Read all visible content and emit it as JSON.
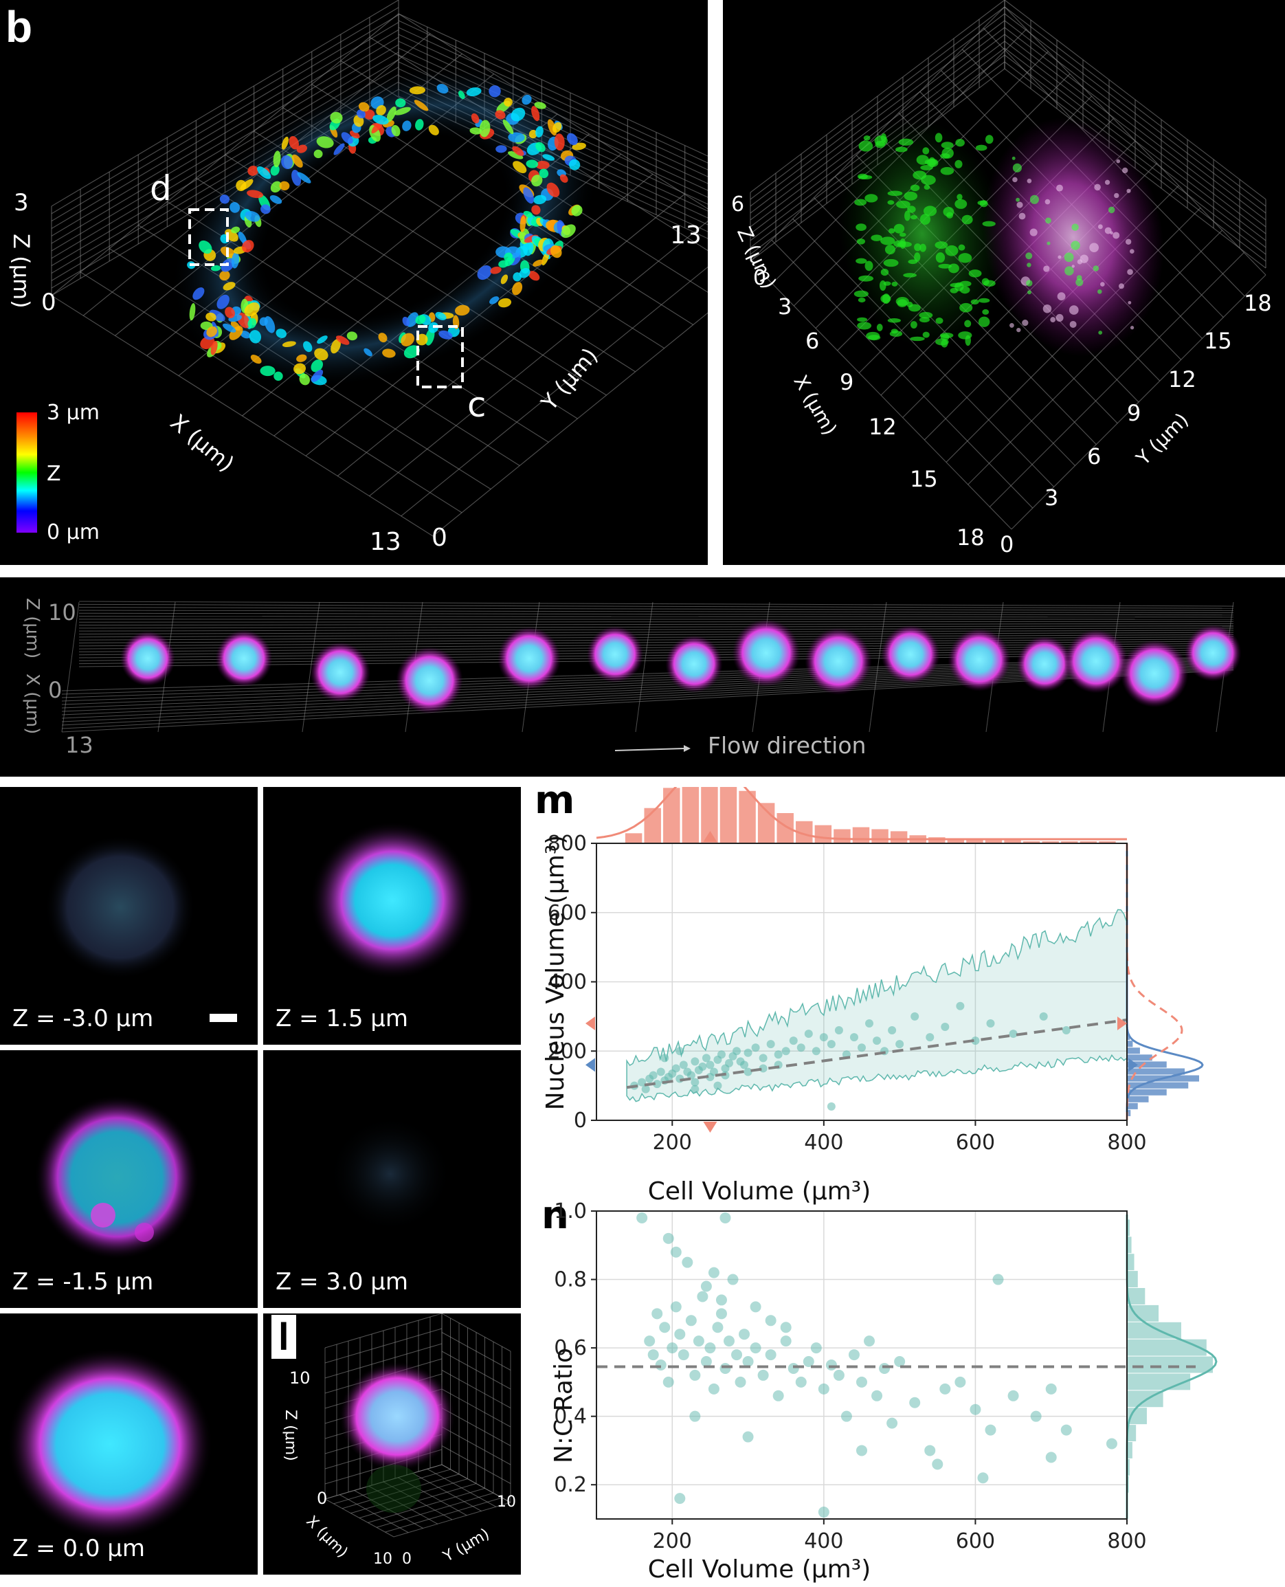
{
  "panel_b": {
    "label": "b",
    "z_axis_title": "Z (μm)",
    "x_axis_title": "X (μm)",
    "y_axis_title": "Y (μm)",
    "z_max": "3",
    "z_min": "0",
    "x_max": "13",
    "y_max": "13",
    "origin": "0",
    "roi_d": "d",
    "roi_c": "c",
    "colorbar_top": "3 μm",
    "colorbar_mid": "Z",
    "colorbar_bottom": "0 μm"
  },
  "panel_b2": {
    "z_axis_title": "Z (μm)",
    "x_axis_title": "X (μm)",
    "y_axis_title": "Y (μm)",
    "z_max": "6",
    "z_min": "0",
    "x_ticks": [
      "3",
      "6",
      "9",
      "12",
      "15"
    ],
    "x_max": "18",
    "y_ticks": [
      "3",
      "6",
      "9",
      "12",
      "15"
    ],
    "y_max": "18",
    "origin": "0"
  },
  "flow_panel": {
    "z_axis_title": "Z (μm)",
    "x_axis_title": "X (μm)",
    "z_top": "10",
    "z_mid": "0",
    "x_bottom": "13",
    "flow_label": "Flow direction"
  },
  "z_slices": [
    {
      "label": "Z = -3.0 μm"
    },
    {
      "label": "Z = 1.5 μm"
    },
    {
      "label": "Z = -1.5 μm"
    },
    {
      "label": "Z = 3.0 μm"
    },
    {
      "label": "Z = 0.0 μm"
    }
  ],
  "panel_l": {
    "label": "l",
    "z_axis_title": "Z (μm)",
    "x_axis_title": "X (μm)",
    "y_axis_title": "Y (μm)",
    "z_top": "10",
    "z_bottom": "0",
    "x_end": "10",
    "y_start": "0",
    "y_end": "10"
  },
  "chart_m": {
    "label": "m",
    "xlabel": "Cell Volume (μm³)",
    "ylabel": "Nucleus Volume (μm³)",
    "x_ticks": [
      "200",
      "400",
      "600",
      "800"
    ],
    "y_ticks": [
      "0",
      "200",
      "400",
      "600",
      "800"
    ]
  },
  "chart_n": {
    "label": "n",
    "xlabel": "Cell Volume (μm³)",
    "ylabel": "N:C Ratio",
    "x_ticks": [
      "200",
      "400",
      "600",
      "800"
    ],
    "y_ticks": [
      "0.2",
      "0.4",
      "0.6",
      "0.8",
      "1.0"
    ]
  },
  "chart_data": [
    {
      "type": "scatter",
      "xlabel": "Cell Volume (μm³)",
      "ylabel": "Nucleus Volume (μm³)",
      "xlim": [
        100,
        800
      ],
      "ylim": [
        0,
        800
      ],
      "grid": true,
      "trend_line": {
        "x": [
          140,
          800
        ],
        "y": [
          95,
          290
        ],
        "style": "dashed",
        "color": "#808080"
      },
      "points": [
        [
          150,
          100
        ],
        [
          160,
          110
        ],
        [
          165,
          90
        ],
        [
          170,
          120
        ],
        [
          175,
          130
        ],
        [
          180,
          105
        ],
        [
          185,
          140
        ],
        [
          190,
          115
        ],
        [
          195,
          125
        ],
        [
          200,
          135
        ],
        [
          205,
          150
        ],
        [
          210,
          120
        ],
        [
          215,
          160
        ],
        [
          220,
          140
        ],
        [
          225,
          130
        ],
        [
          230,
          170
        ],
        [
          235,
          145
        ],
        [
          240,
          155
        ],
        [
          245,
          180
        ],
        [
          250,
          160
        ],
        [
          255,
          140
        ],
        [
          260,
          175
        ],
        [
          265,
          190
        ],
        [
          270,
          150
        ],
        [
          275,
          165
        ],
        [
          280,
          185
        ],
        [
          285,
          200
        ],
        [
          290,
          170
        ],
        [
          295,
          160
        ],
        [
          300,
          195
        ],
        [
          310,
          210
        ],
        [
          320,
          180
        ],
        [
          330,
          220
        ],
        [
          340,
          190
        ],
        [
          350,
          200
        ],
        [
          360,
          230
        ],
        [
          370,
          210
        ],
        [
          380,
          250
        ],
        [
          390,
          200
        ],
        [
          400,
          240
        ],
        [
          410,
          220
        ],
        [
          420,
          260
        ],
        [
          430,
          190
        ],
        [
          440,
          240
        ],
        [
          450,
          210
        ],
        [
          460,
          280
        ],
        [
          470,
          230
        ],
        [
          480,
          200
        ],
        [
          490,
          260
        ],
        [
          500,
          220
        ],
        [
          520,
          300
        ],
        [
          540,
          240
        ],
        [
          560,
          270
        ],
        [
          580,
          330
        ],
        [
          600,
          230
        ],
        [
          620,
          280
        ],
        [
          650,
          250
        ],
        [
          690,
          300
        ],
        [
          720,
          260
        ],
        [
          410,
          40
        ],
        [
          190,
          180
        ],
        [
          210,
          200
        ],
        [
          230,
          110
        ],
        [
          250,
          125
        ],
        [
          270,
          130
        ],
        [
          300,
          140
        ],
        [
          320,
          150
        ],
        [
          340,
          160
        ],
        [
          230,
          90
        ],
        [
          260,
          100
        ]
      ],
      "top_histogram": {
        "color": "#f08a78",
        "bins_x": [
          150,
          175,
          200,
          225,
          250,
          275,
          300,
          325,
          350,
          375,
          400,
          425,
          450,
          475,
          500,
          525,
          550,
          575,
          600,
          625,
          650,
          675,
          700,
          725,
          750,
          775
        ],
        "counts": [
          10,
          35,
          55,
          70,
          75,
          68,
          52,
          40,
          30,
          22,
          18,
          14,
          16,
          14,
          12,
          8,
          6,
          5,
          4,
          3,
          3,
          2,
          2,
          2,
          2,
          2
        ]
      },
      "right_histogram": {
        "color": "#5b8ac4",
        "bins_y": [
          20,
          40,
          60,
          80,
          100,
          120,
          140,
          160,
          180,
          200,
          220,
          240
        ],
        "counts": [
          5,
          15,
          30,
          55,
          85,
          100,
          80,
          55,
          35,
          18,
          8,
          4
        ]
      },
      "markers": {
        "cell_volume_mode": 250,
        "nucleus_volume_mode_blue": 160,
        "nucleus_volume_mode_red": 280
      }
    },
    {
      "type": "scatter",
      "xlabel": "Cell Volume (μm³)",
      "ylabel": "N:C Ratio",
      "xlim": [
        100,
        800
      ],
      "ylim": [
        0.1,
        1.0
      ],
      "grid": true,
      "mean_line": {
        "y": 0.545,
        "style": "dashed",
        "color": "#808080"
      },
      "points": [
        [
          160,
          0.98
        ],
        [
          170,
          0.62
        ],
        [
          175,
          0.58
        ],
        [
          180,
          0.7
        ],
        [
          185,
          0.55
        ],
        [
          190,
          0.66
        ],
        [
          195,
          0.5
        ],
        [
          200,
          0.6
        ],
        [
          205,
          0.72
        ],
        [
          210,
          0.64
        ],
        [
          215,
          0.58
        ],
        [
          220,
          0.85
        ],
        [
          225,
          0.68
        ],
        [
          230,
          0.52
        ],
        [
          235,
          0.62
        ],
        [
          240,
          0.75
        ],
        [
          245,
          0.56
        ],
        [
          250,
          0.6
        ],
        [
          255,
          0.48
        ],
        [
          260,
          0.66
        ],
        [
          265,
          0.7
        ],
        [
          270,
          0.54
        ],
        [
          275,
          0.62
        ],
        [
          280,
          0.8
        ],
        [
          285,
          0.58
        ],
        [
          290,
          0.5
        ],
        [
          295,
          0.64
        ],
        [
          300,
          0.56
        ],
        [
          310,
          0.6
        ],
        [
          320,
          0.52
        ],
        [
          330,
          0.58
        ],
        [
          340,
          0.46
        ],
        [
          350,
          0.62
        ],
        [
          360,
          0.54
        ],
        [
          370,
          0.5
        ],
        [
          380,
          0.56
        ],
        [
          390,
          0.6
        ],
        [
          400,
          0.48
        ],
        [
          410,
          0.55
        ],
        [
          420,
          0.52
        ],
        [
          430,
          0.4
        ],
        [
          440,
          0.58
        ],
        [
          450,
          0.5
        ],
        [
          460,
          0.62
        ],
        [
          470,
          0.46
        ],
        [
          480,
          0.54
        ],
        [
          490,
          0.38
        ],
        [
          500,
          0.56
        ],
        [
          520,
          0.44
        ],
        [
          540,
          0.3
        ],
        [
          560,
          0.48
        ],
        [
          580,
          0.5
        ],
        [
          600,
          0.42
        ],
        [
          620,
          0.36
        ],
        [
          650,
          0.46
        ],
        [
          680,
          0.4
        ],
        [
          700,
          0.48
        ],
        [
          720,
          0.36
        ],
        [
          780,
          0.32
        ],
        [
          270,
          0.98
        ],
        [
          195,
          0.92
        ],
        [
          205,
          0.88
        ],
        [
          245,
          0.78
        ],
        [
          255,
          0.82
        ],
        [
          265,
          0.74
        ],
        [
          310,
          0.72
        ],
        [
          330,
          0.68
        ],
        [
          350,
          0.66
        ],
        [
          230,
          0.4
        ],
        [
          300,
          0.34
        ],
        [
          210,
          0.16
        ],
        [
          400,
          0.12
        ],
        [
          450,
          0.3
        ],
        [
          550,
          0.26
        ],
        [
          610,
          0.22
        ],
        [
          700,
          0.28
        ],
        [
          630,
          0.8
        ]
      ],
      "right_histogram": {
        "color": "#5fb8ad",
        "bins_y": [
          0.2,
          0.25,
          0.3,
          0.35,
          0.4,
          0.45,
          0.5,
          0.55,
          0.6,
          0.65,
          0.7,
          0.75,
          0.8,
          0.85,
          0.9,
          0.95
        ],
        "counts": [
          2,
          3,
          6,
          10,
          22,
          40,
          70,
          95,
          88,
          60,
          35,
          20,
          12,
          8,
          5,
          3
        ]
      }
    }
  ],
  "colors": {
    "cyan": "#5fb8ad",
    "salmon": "#f08a78",
    "blue": "#5b8ac4",
    "grid": "#d9d9d9"
  }
}
